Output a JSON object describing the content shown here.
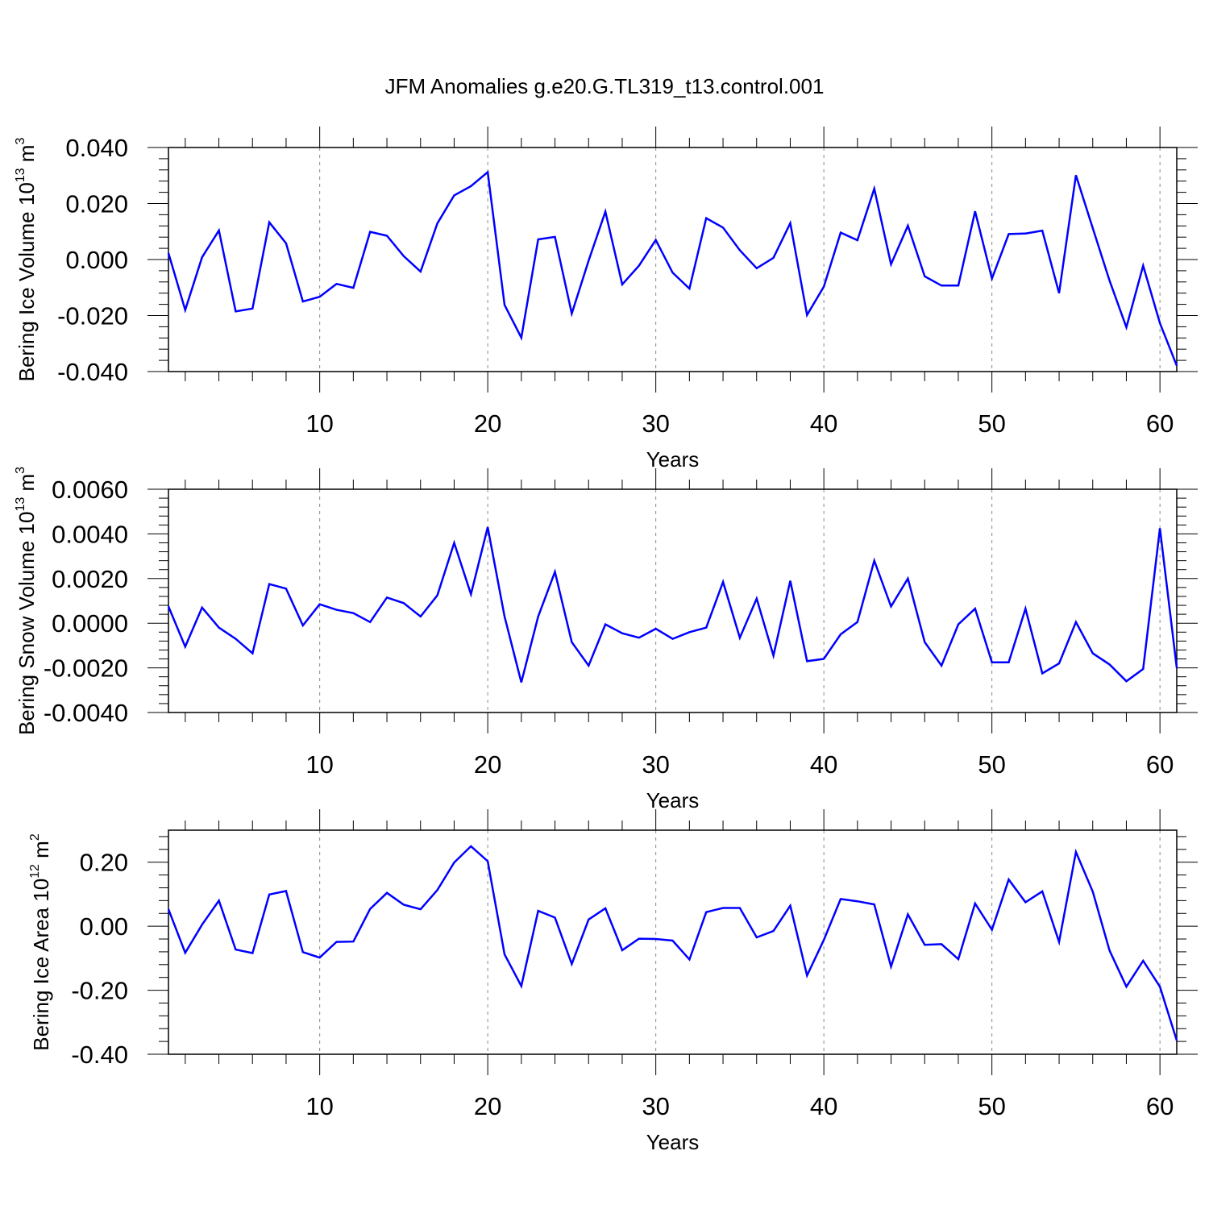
{
  "title": "JFM Anomalies g.e20.G.TL319_t13.control.001",
  "line_color": "#0000ff",
  "chart_data": [
    {
      "type": "line",
      "title": "JFM Anomalies g.e20.G.TL319_t13.control.001",
      "xlabel": "Years",
      "ylabel": "Bering Ice Volume 10",
      "ylabel_sup": "13",
      "ylabel_unit": " m",
      "ylabel_unit_sup": "3",
      "xlim": [
        1,
        61
      ],
      "ylim": [
        -0.04,
        0.04
      ],
      "xticks": [
        10,
        20,
        30,
        40,
        50,
        60
      ],
      "xtick_labels": [
        "10",
        "20",
        "30",
        "40",
        "50",
        "60"
      ],
      "yticks": [
        -0.04,
        -0.02,
        0.0,
        0.02,
        0.04
      ],
      "ytick_labels": [
        "-0.040",
        "-0.020",
        "0.000",
        "0.020",
        "0.040"
      ],
      "series": [
        {
          "name": "Bering Ice Volume",
          "x": [
            1,
            2,
            3,
            4,
            5,
            6,
            7,
            8,
            9,
            10,
            11,
            12,
            13,
            14,
            15,
            16,
            17,
            18,
            19,
            20,
            21,
            22,
            23,
            24,
            25,
            26,
            27,
            28,
            29,
            30,
            31,
            32,
            33,
            34,
            35,
            36,
            37,
            38,
            39,
            40,
            41,
            42,
            43,
            44,
            45,
            46,
            47,
            48,
            49,
            50,
            51,
            52,
            53,
            54,
            55,
            56,
            57,
            58,
            59,
            60,
            61
          ],
          "values": [
            0.0023,
            -0.018,
            0.0008,
            0.0104,
            -0.0185,
            -0.0175,
            0.0133,
            0.0058,
            -0.015,
            -0.0133,
            -0.0087,
            -0.0101,
            0.0099,
            0.0085,
            0.0012,
            -0.0043,
            0.0129,
            0.0229,
            0.0262,
            0.0312,
            -0.0162,
            -0.0279,
            0.0072,
            0.0081,
            -0.0193,
            -0.0004,
            0.0171,
            -0.0089,
            -0.0022,
            0.007,
            -0.0047,
            -0.0104,
            0.0148,
            0.0114,
            0.0033,
            -0.0031,
            0.0006,
            0.013,
            -0.0198,
            -0.0097,
            0.0096,
            0.0069,
            0.0253,
            -0.0017,
            0.0121,
            -0.006,
            -0.0093,
            -0.0093,
            0.0172,
            -0.0068,
            0.0091,
            0.0093,
            0.0103,
            -0.012,
            0.0301,
            0.0112,
            -0.0075,
            -0.0242,
            -0.0022,
            -0.0227,
            -0.0379
          ]
        }
      ]
    },
    {
      "type": "line",
      "xlabel": "Years",
      "ylabel": "Bering Snow Volume 10",
      "ylabel_sup": "13",
      "ylabel_unit": " m",
      "ylabel_unit_sup": "3",
      "xlim": [
        1,
        61
      ],
      "ylim": [
        -0.004,
        0.006
      ],
      "xticks": [
        10,
        20,
        30,
        40,
        50,
        60
      ],
      "xtick_labels": [
        "10",
        "20",
        "30",
        "40",
        "50",
        "60"
      ],
      "yticks": [
        -0.004,
        -0.002,
        0.0,
        0.002,
        0.004,
        0.006
      ],
      "ytick_labels": [
        "-0.0040",
        "-0.0020",
        "0.0000",
        "0.0020",
        "0.0040",
        "0.0060"
      ],
      "series": [
        {
          "name": "Bering Snow Volume",
          "x": [
            1,
            2,
            3,
            4,
            5,
            6,
            7,
            8,
            9,
            10,
            11,
            12,
            13,
            14,
            15,
            16,
            17,
            18,
            19,
            20,
            21,
            22,
            23,
            24,
            25,
            26,
            27,
            28,
            29,
            30,
            31,
            32,
            33,
            34,
            35,
            36,
            37,
            38,
            39,
            40,
            41,
            42,
            43,
            44,
            45,
            46,
            47,
            48,
            49,
            50,
            51,
            52,
            53,
            54,
            55,
            56,
            57,
            58,
            59,
            60,
            61
          ],
          "values": [
            0.00075,
            -0.00105,
            0.0007,
            -0.0002,
            -0.0007,
            -0.00135,
            0.00175,
            0.00155,
            -0.0001,
            0.00085,
            0.0006,
            0.00045,
            5e-05,
            0.00115,
            0.0009,
            0.0003,
            0.00125,
            0.0036,
            0.0013,
            0.0043,
            0.0003,
            -0.00265,
            0.0003,
            0.0023,
            -0.00085,
            -0.0019,
            -5e-05,
            -0.00045,
            -0.00065,
            -0.00025,
            -0.0007,
            -0.0004,
            -0.0002,
            0.00185,
            -0.00065,
            0.0011,
            -0.00145,
            0.0019,
            -0.0017,
            -0.0016,
            -0.0005,
            5e-05,
            0.0028,
            0.00075,
            0.002,
            -0.00085,
            -0.0019,
            -5e-05,
            0.00065,
            -0.00175,
            -0.00175,
            0.00065,
            -0.00225,
            -0.0018,
            5e-05,
            -0.00135,
            -0.00185,
            -0.0026,
            -0.00205,
            0.00425,
            -0.002
          ]
        }
      ]
    },
    {
      "type": "line",
      "xlabel": "Years",
      "ylabel": "Bering Ice Area 10",
      "ylabel_sup": "12",
      "ylabel_unit": " m",
      "ylabel_unit_sup": "2",
      "xlim": [
        1,
        61
      ],
      "ylim": [
        -0.4,
        0.3
      ],
      "xticks": [
        10,
        20,
        30,
        40,
        50,
        60
      ],
      "xtick_labels": [
        "10",
        "20",
        "30",
        "40",
        "50",
        "60"
      ],
      "yticks": [
        -0.4,
        -0.2,
        0.0,
        0.2
      ],
      "ytick_labels": [
        "-0.40",
        "-0.20",
        "0.00",
        "0.20"
      ],
      "series": [
        {
          "name": "Bering Ice Area",
          "x": [
            1,
            2,
            3,
            4,
            5,
            6,
            7,
            8,
            9,
            10,
            11,
            12,
            13,
            14,
            15,
            16,
            17,
            18,
            19,
            20,
            21,
            22,
            23,
            24,
            25,
            26,
            27,
            28,
            29,
            30,
            31,
            32,
            33,
            34,
            35,
            36,
            37,
            38,
            39,
            40,
            41,
            42,
            43,
            44,
            45,
            46,
            47,
            48,
            49,
            50,
            51,
            52,
            53,
            54,
            55,
            56,
            57,
            58,
            59,
            60,
            61
          ],
          "values": [
            0.053,
            -0.083,
            0.005,
            0.08,
            -0.073,
            -0.084,
            0.099,
            0.11,
            -0.081,
            -0.098,
            -0.049,
            -0.048,
            0.054,
            0.104,
            0.067,
            0.053,
            0.113,
            0.199,
            0.25,
            0.203,
            -0.088,
            -0.187,
            0.048,
            0.027,
            -0.118,
            0.021,
            0.056,
            -0.075,
            -0.039,
            -0.04,
            -0.045,
            -0.104,
            0.044,
            0.057,
            0.057,
            -0.035,
            -0.015,
            0.064,
            -0.154,
            -0.043,
            0.085,
            0.078,
            0.068,
            -0.126,
            0.037,
            -0.058,
            -0.056,
            -0.103,
            0.071,
            -0.011,
            0.146,
            0.075,
            0.109,
            -0.049,
            0.232,
            0.108,
            -0.076,
            -0.189,
            -0.108,
            -0.189,
            -0.357
          ]
        }
      ]
    }
  ]
}
